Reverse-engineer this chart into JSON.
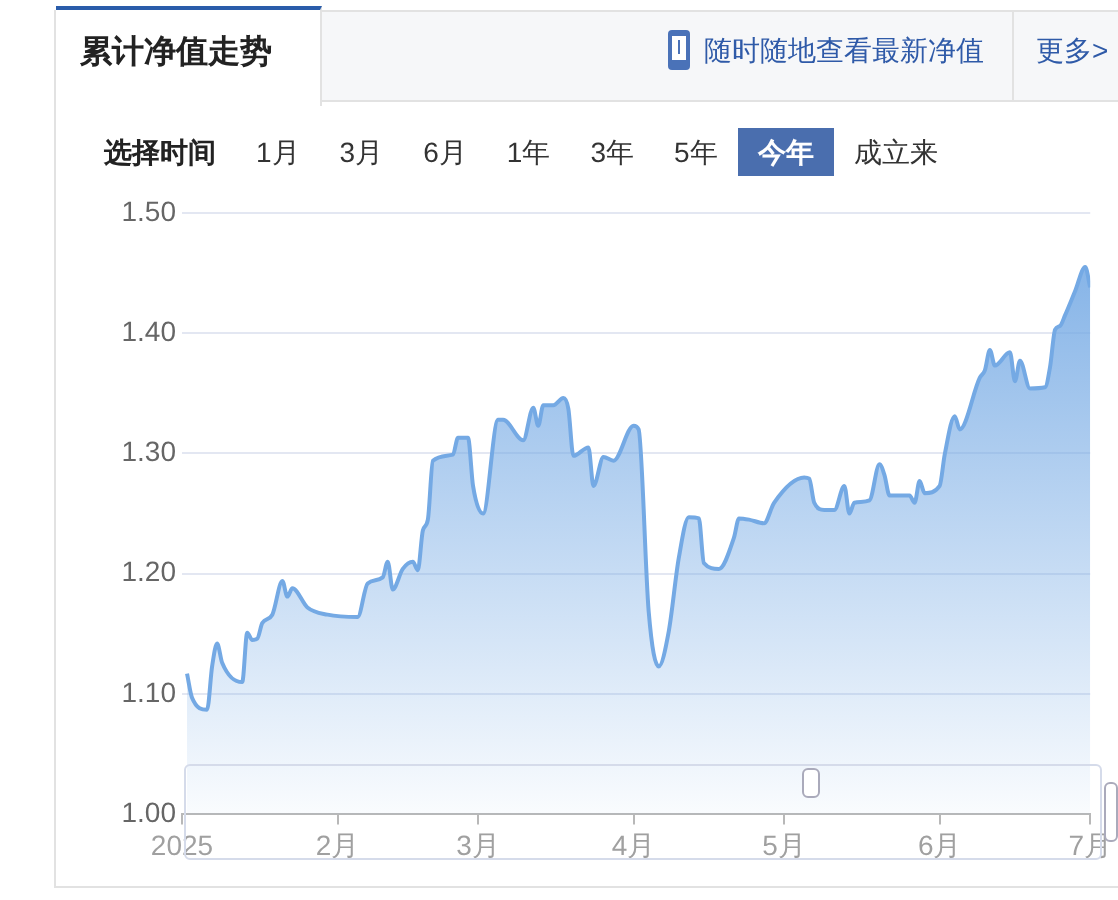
{
  "chart_data": {
    "type": "area",
    "title": "累计净值走势",
    "annotations": [
      "随时随地查看最新净值",
      "更多>",
      "选择时间",
      "1月",
      "3月",
      "6月",
      "1年",
      "3年",
      "5年",
      "今年",
      "成立来"
    ],
    "x": [
      "2025-01-02",
      "2025-01-03",
      "2025-01-06",
      "2025-01-07",
      "2025-01-08",
      "2025-01-09",
      "2025-01-13",
      "2025-01-14",
      "2025-01-15",
      "2025-01-16",
      "2025-01-17",
      "2025-01-19",
      "2025-01-21",
      "2025-01-22",
      "2025-01-23",
      "2025-01-26",
      "2025-01-30",
      "2025-02-05",
      "2025-02-07",
      "2025-02-10",
      "2025-02-11",
      "2025-02-12",
      "2025-02-14",
      "2025-02-16",
      "2025-02-17",
      "2025-02-18",
      "2025-02-19",
      "2025-02-20",
      "2025-02-24",
      "2025-02-25",
      "2025-02-27",
      "2025-02-28",
      "2025-03-02",
      "2025-03-05",
      "2025-03-06",
      "2025-03-10",
      "2025-03-12",
      "2025-03-13",
      "2025-03-14",
      "2025-03-16",
      "2025-03-18",
      "2025-03-19",
      "2025-03-20",
      "2025-03-23",
      "2025-03-24",
      "2025-03-26",
      "2025-03-28",
      "2025-04-01",
      "2025-04-02",
      "2025-04-04",
      "2025-04-06",
      "2025-04-08",
      "2025-04-10",
      "2025-04-12",
      "2025-04-14",
      "2025-04-15",
      "2025-04-18",
      "2025-04-21",
      "2025-04-22",
      "2025-04-24",
      "2025-04-27",
      "2025-04-29",
      "2025-05-05",
      "2025-05-06",
      "2025-05-07",
      "2025-05-09",
      "2025-05-11",
      "2025-05-13",
      "2025-05-14",
      "2025-05-15",
      "2025-05-18",
      "2025-05-20",
      "2025-05-21",
      "2025-05-22",
      "2025-05-26",
      "2025-05-27",
      "2025-05-28",
      "2025-05-29",
      "2025-06-01",
      "2025-06-02",
      "2025-06-04",
      "2025-06-05",
      "2025-06-09",
      "2025-06-10",
      "2025-06-11",
      "2025-06-12",
      "2025-06-15",
      "2025-06-16",
      "2025-06-17",
      "2025-06-19",
      "2025-06-22",
      "2025-06-23",
      "2025-06-24",
      "2025-06-25",
      "2025-06-26",
      "2025-06-28",
      "2025-06-30",
      "2025-07-01"
    ],
    "series": [
      {
        "color": "#74a9e4",
        "values": [
          1.117,
          1.097,
          1.087,
          1.123,
          1.142,
          1.126,
          1.11,
          1.151,
          1.145,
          1.146,
          1.159,
          1.166,
          1.194,
          1.181,
          1.188,
          1.172,
          1.166,
          1.164,
          1.192,
          1.197,
          1.21,
          1.187,
          1.204,
          1.21,
          1.203,
          1.236,
          1.245,
          1.294,
          1.299,
          1.313,
          1.313,
          1.273,
          1.25,
          1.328,
          1.328,
          1.311,
          1.338,
          1.323,
          1.34,
          1.34,
          1.346,
          1.337,
          1.298,
          1.305,
          1.273,
          1.297,
          1.294,
          1.323,
          1.32,
          1.169,
          1.123,
          1.152,
          1.213,
          1.247,
          1.246,
          1.209,
          1.204,
          1.23,
          1.246,
          1.245,
          1.242,
          1.259,
          1.28,
          1.279,
          1.259,
          1.253,
          1.253,
          1.273,
          1.25,
          1.259,
          1.261,
          1.291,
          1.282,
          1.265,
          1.265,
          1.259,
          1.277,
          1.267,
          1.273,
          1.299,
          1.331,
          1.32,
          1.363,
          1.369,
          1.386,
          1.373,
          1.384,
          1.36,
          1.377,
          1.354,
          1.355,
          1.372,
          1.403,
          1.406,
          1.415,
          1.435,
          1.455,
          1.438
        ]
      }
    ],
    "xlim": [
      "2025-01-01",
      "2025-07-01"
    ],
    "xticks": [
      {
        "value": "2025-01-01",
        "label": "2025"
      },
      {
        "value": "2025-02-01",
        "label": "2月"
      },
      {
        "value": "2025-03-01",
        "label": "3月"
      },
      {
        "value": "2025-04-01",
        "label": "4月"
      },
      {
        "value": "2025-05-01",
        "label": "5月"
      },
      {
        "value": "2025-06-01",
        "label": "6月"
      },
      {
        "value": "2025-07-01",
        "label": "7月"
      }
    ],
    "ylim": [
      1.0,
      1.5
    ],
    "yticks": [
      {
        "value": 1.0,
        "label": "1.00"
      },
      {
        "value": 1.1,
        "label": "1.10"
      },
      {
        "value": 1.2,
        "label": "1.20"
      },
      {
        "value": 1.3,
        "label": "1.30"
      },
      {
        "value": 1.4,
        "label": "1.40"
      },
      {
        "value": 1.5,
        "label": "1.50"
      }
    ],
    "grid": "y",
    "legend": false,
    "marker": "none",
    "line_style": "solid"
  }
}
